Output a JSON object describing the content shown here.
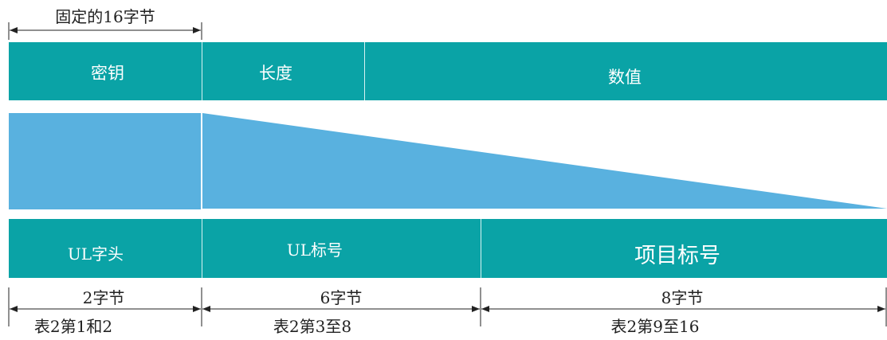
{
  "colors": {
    "teal": "#0aa3a6",
    "light_blue": "#59b1df",
    "divider": "#d8f2f2",
    "line": "#222222"
  },
  "top_label": "固定的16字节",
  "row1": {
    "key": "密钥",
    "length": "长度",
    "value": "数值"
  },
  "row3": {
    "ul_header": "UL字头",
    "ul_number": "UL标号",
    "item_number": "项目标号"
  },
  "sizes": {
    "a": "2字节",
    "b": "6字节",
    "c": "8字节"
  },
  "refs": {
    "a": "表2第1和2",
    "b": "表2第3至8",
    "c": "表2第9至16"
  }
}
